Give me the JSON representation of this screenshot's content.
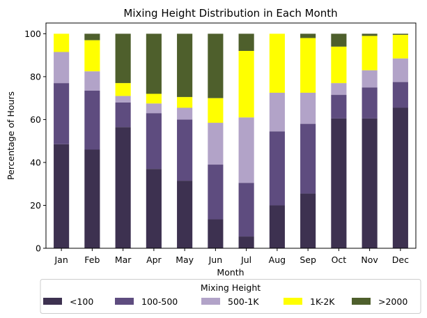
{
  "chart_data": {
    "type": "bar",
    "stacked": true,
    "title": "Mixing Height Distribution in Each Month",
    "xlabel": "Month",
    "ylabel": "Percentage of Hours",
    "ylim": [
      0,
      105
    ],
    "yticks": [
      "0",
      "20",
      "40",
      "60",
      "80",
      "100"
    ],
    "categories": [
      "Jan",
      "Feb",
      "Mar",
      "Apr",
      "May",
      "Jun",
      "Jul",
      "Aug",
      "Sep",
      "Oct",
      "Nov",
      "Dec"
    ],
    "legend_title": "Mixing Height",
    "legend_position": "bottom",
    "series": [
      {
        "name": "<100",
        "color": "#3d3150",
        "values": [
          48.5,
          46,
          56.5,
          37,
          31.5,
          13.5,
          5.5,
          20,
          25.5,
          60.5,
          60.5,
          65.5
        ]
      },
      {
        "name": "100-500",
        "color": "#5e4c7f",
        "values": [
          28.5,
          27.5,
          11.5,
          26,
          28.5,
          25.5,
          25,
          34.5,
          32.5,
          11,
          14.5,
          12
        ]
      },
      {
        "name": "500-1K",
        "color": "#b2a3c8",
        "values": [
          14.5,
          9,
          3,
          4.5,
          5.5,
          19.5,
          30.5,
          18,
          14.5,
          5.5,
          8,
          11
        ]
      },
      {
        "name": "1K-2K",
        "color": "#ffff00",
        "values": [
          8.5,
          14.5,
          6,
          4.5,
          5,
          11.5,
          31,
          27.5,
          25.5,
          17,
          16,
          11
        ]
      },
      {
        "name": ">2000",
        "color": "#4e5f2c",
        "values": [
          0,
          3,
          23,
          28,
          29.5,
          30,
          8,
          0,
          2,
          6,
          1,
          0.5
        ]
      }
    ]
  }
}
